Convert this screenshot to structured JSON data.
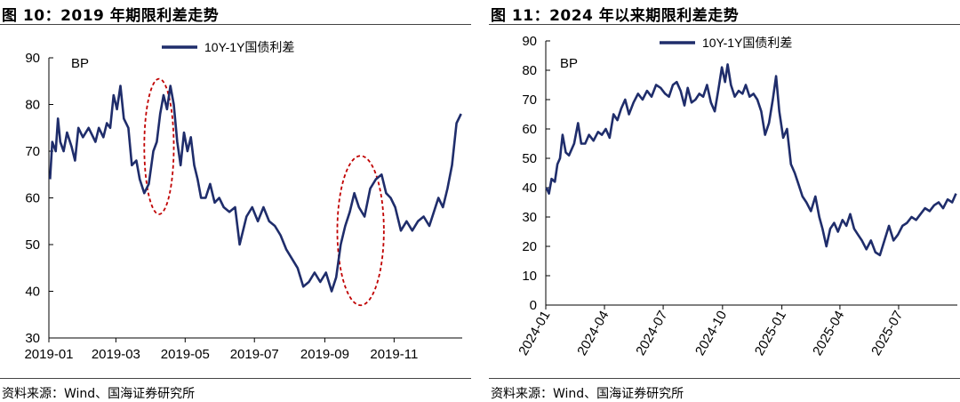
{
  "figures": [
    {
      "title": "图 10：2019 年期限利差走势",
      "source": "资料来源：Wind、国海证券研究所",
      "chart_data": {
        "type": "line",
        "title": "",
        "unit_label": "BP",
        "xlabel": "",
        "ylabel": "",
        "x_ticks": [
          "2019-01",
          "2019-03",
          "2019-05",
          "2019-07",
          "2019-09",
          "2019-11"
        ],
        "x_range": [
          "2019-01-01",
          "2019-12-31"
        ],
        "y_ticks": [
          30,
          40,
          50,
          60,
          70,
          80,
          90
        ],
        "ylim": [
          30,
          90
        ],
        "grid": false,
        "legend_position": "top-center",
        "series": [
          {
            "name": "10Y-1Y国债利差",
            "color": "#1f2d6b",
            "points": [
              [
                "2019-01-02",
                64
              ],
              [
                "2019-01-04",
                72
              ],
              [
                "2019-01-07",
                70
              ],
              [
                "2019-01-09",
                77
              ],
              [
                "2019-01-11",
                72
              ],
              [
                "2019-01-14",
                70
              ],
              [
                "2019-01-17",
                74
              ],
              [
                "2019-01-21",
                71
              ],
              [
                "2019-01-24",
                68
              ],
              [
                "2019-01-27",
                75
              ],
              [
                "2019-01-31",
                73
              ],
              [
                "2019-02-05",
                75
              ],
              [
                "2019-02-11",
                72
              ],
              [
                "2019-02-14",
                75
              ],
              [
                "2019-02-18",
                73
              ],
              [
                "2019-02-21",
                76
              ],
              [
                "2019-02-24",
                75
              ],
              [
                "2019-02-27",
                82
              ],
              [
                "2019-03-02",
                79
              ],
              [
                "2019-03-05",
                84
              ],
              [
                "2019-03-08",
                77
              ],
              [
                "2019-03-12",
                75
              ],
              [
                "2019-03-15",
                67
              ],
              [
                "2019-03-19",
                68
              ],
              [
                "2019-03-22",
                64
              ],
              [
                "2019-03-26",
                61
              ],
              [
                "2019-03-30",
                63
              ],
              [
                "2019-04-03",
                70
              ],
              [
                "2019-04-06",
                72
              ],
              [
                "2019-04-09",
                78
              ],
              [
                "2019-04-12",
                82
              ],
              [
                "2019-04-15",
                79
              ],
              [
                "2019-04-18",
                84
              ],
              [
                "2019-04-21",
                80
              ],
              [
                "2019-04-24",
                72
              ],
              [
                "2019-04-27",
                67
              ],
              [
                "2019-04-30",
                74
              ],
              [
                "2019-05-03",
                70
              ],
              [
                "2019-05-06",
                73
              ],
              [
                "2019-05-09",
                67
              ],
              [
                "2019-05-12",
                64
              ],
              [
                "2019-05-15",
                60
              ],
              [
                "2019-05-19",
                60
              ],
              [
                "2019-05-23",
                63
              ],
              [
                "2019-05-27",
                59
              ],
              [
                "2019-05-31",
                60
              ],
              [
                "2019-06-04",
                58
              ],
              [
                "2019-06-09",
                57
              ],
              [
                "2019-06-14",
                58
              ],
              [
                "2019-06-18",
                50
              ],
              [
                "2019-06-24",
                56
              ],
              [
                "2019-06-29",
                58
              ],
              [
                "2019-07-04",
                55
              ],
              [
                "2019-07-09",
                58
              ],
              [
                "2019-07-14",
                55
              ],
              [
                "2019-07-19",
                54
              ],
              [
                "2019-07-24",
                52
              ],
              [
                "2019-07-29",
                49
              ],
              [
                "2019-08-03",
                47
              ],
              [
                "2019-08-08",
                45
              ],
              [
                "2019-08-13",
                41
              ],
              [
                "2019-08-18",
                42
              ],
              [
                "2019-08-23",
                44
              ],
              [
                "2019-08-28",
                42
              ],
              [
                "2019-09-02",
                44
              ],
              [
                "2019-09-07",
                40
              ],
              [
                "2019-09-11",
                43
              ],
              [
                "2019-09-15",
                50
              ],
              [
                "2019-09-19",
                54
              ],
              [
                "2019-09-23",
                57
              ],
              [
                "2019-09-27",
                61
              ],
              [
                "2019-10-01",
                58
              ],
              [
                "2019-10-06",
                56
              ],
              [
                "2019-10-11",
                62
              ],
              [
                "2019-10-16",
                64
              ],
              [
                "2019-10-21",
                65
              ],
              [
                "2019-10-25",
                61
              ],
              [
                "2019-10-29",
                60
              ],
              [
                "2019-11-02",
                58
              ],
              [
                "2019-11-07",
                53
              ],
              [
                "2019-11-12",
                55
              ],
              [
                "2019-11-17",
                53
              ],
              [
                "2019-11-22",
                55
              ],
              [
                "2019-11-27",
                56
              ],
              [
                "2019-12-02",
                54
              ],
              [
                "2019-12-06",
                57
              ],
              [
                "2019-12-10",
                60
              ],
              [
                "2019-12-14",
                58
              ],
              [
                "2019-12-18",
                62
              ],
              [
                "2019-12-22",
                67
              ],
              [
                "2019-12-26",
                76
              ],
              [
                "2019-12-30",
                78
              ]
            ]
          }
        ],
        "annotations": [
          {
            "type": "dashed-ellipse",
            "color": "#c00000",
            "x_from": "2019-03-26",
            "x_to": "2019-04-21",
            "y_from": 56.5,
            "y_to": 85.5
          },
          {
            "type": "dashed-ellipse",
            "color": "#c00000",
            "x_from": "2019-09-12",
            "x_to": "2019-10-23",
            "y_from": 37,
            "y_to": 69
          }
        ]
      }
    },
    {
      "title": "图 11：2024 年以来期限利差走势",
      "source": "资料来源：Wind、国海证券研究所",
      "chart_data": {
        "type": "line",
        "title": "",
        "unit_label": "BP",
        "xlabel": "",
        "ylabel": "",
        "x_ticks": [
          "2024-01",
          "2024-04",
          "2024-07",
          "2024-10",
          "2025-01",
          "2025-04",
          "2025-07"
        ],
        "x_range": [
          "2024-01-01",
          "2025-09-30"
        ],
        "y_ticks": [
          0,
          10,
          20,
          30,
          40,
          50,
          60,
          70,
          80,
          90
        ],
        "ylim": [
          0,
          90
        ],
        "grid": false,
        "legend_position": "top-center",
        "series": [
          {
            "name": "10Y-1Y国债利差",
            "color": "#1f2d6b",
            "points": [
              [
                "2024-01-02",
                40
              ],
              [
                "2024-01-06",
                38
              ],
              [
                "2024-01-10",
                43
              ],
              [
                "2024-01-15",
                42
              ],
              [
                "2024-01-19",
                48
              ],
              [
                "2024-01-23",
                50
              ],
              [
                "2024-01-27",
                58
              ],
              [
                "2024-02-01",
                52
              ],
              [
                "2024-02-06",
                51
              ],
              [
                "2024-02-14",
                55
              ],
              [
                "2024-02-20",
                62
              ],
              [
                "2024-02-25",
                55
              ],
              [
                "2024-03-02",
                55
              ],
              [
                "2024-03-08",
                58
              ],
              [
                "2024-03-15",
                56
              ],
              [
                "2024-03-22",
                59
              ],
              [
                "2024-03-28",
                58
              ],
              [
                "2024-04-03",
                60
              ],
              [
                "2024-04-09",
                57
              ],
              [
                "2024-04-15",
                65
              ],
              [
                "2024-04-21",
                63
              ],
              [
                "2024-04-27",
                67
              ],
              [
                "2024-05-03",
                70
              ],
              [
                "2024-05-09",
                65
              ],
              [
                "2024-05-16",
                69
              ],
              [
                "2024-05-23",
                72
              ],
              [
                "2024-05-30",
                70
              ],
              [
                "2024-06-06",
                73
              ],
              [
                "2024-06-13",
                71
              ],
              [
                "2024-06-20",
                75
              ],
              [
                "2024-06-27",
                74
              ],
              [
                "2024-07-04",
                72
              ],
              [
                "2024-07-10",
                71
              ],
              [
                "2024-07-16",
                75
              ],
              [
                "2024-07-22",
                76
              ],
              [
                "2024-07-28",
                73
              ],
              [
                "2024-08-03",
                68
              ],
              [
                "2024-08-08",
                74
              ],
              [
                "2024-08-14",
                69
              ],
              [
                "2024-08-20",
                70
              ],
              [
                "2024-08-26",
                72
              ],
              [
                "2024-09-01",
                71
              ],
              [
                "2024-09-07",
                75
              ],
              [
                "2024-09-13",
                69
              ],
              [
                "2024-09-19",
                66
              ],
              [
                "2024-09-25",
                74
              ],
              [
                "2024-09-30",
                81
              ],
              [
                "2024-10-05",
                76
              ],
              [
                "2024-10-09",
                82
              ],
              [
                "2024-10-14",
                75
              ],
              [
                "2024-10-20",
                71
              ],
              [
                "2024-10-26",
                73
              ],
              [
                "2024-11-01",
                72
              ],
              [
                "2024-11-06",
                75
              ],
              [
                "2024-11-12",
                71
              ],
              [
                "2024-11-18",
                72
              ],
              [
                "2024-11-24",
                70
              ],
              [
                "2024-11-30",
                66
              ],
              [
                "2024-12-06",
                58
              ],
              [
                "2024-12-12",
                62
              ],
              [
                "2024-12-18",
                70
              ],
              [
                "2024-12-23",
                78
              ],
              [
                "2024-12-28",
                66
              ],
              [
                "2025-01-03",
                57
              ],
              [
                "2025-01-09",
                60
              ],
              [
                "2025-01-15",
                48
              ],
              [
                "2025-01-21",
                45
              ],
              [
                "2025-01-27",
                41
              ],
              [
                "2025-02-02",
                37
              ],
              [
                "2025-02-08",
                35
              ],
              [
                "2025-02-15",
                32
              ],
              [
                "2025-02-22",
                37
              ],
              [
                "2025-02-28",
                30
              ],
              [
                "2025-03-05",
                26
              ],
              [
                "2025-03-11",
                20
              ],
              [
                "2025-03-17",
                26
              ],
              [
                "2025-03-23",
                28
              ],
              [
                "2025-03-29",
                25
              ],
              [
                "2025-04-05",
                29
              ],
              [
                "2025-04-11",
                27
              ],
              [
                "2025-04-17",
                31
              ],
              [
                "2025-04-23",
                26
              ],
              [
                "2025-04-29",
                24
              ],
              [
                "2025-05-05",
                22
              ],
              [
                "2025-05-12",
                19
              ],
              [
                "2025-05-19",
                22
              ],
              [
                "2025-05-26",
                18
              ],
              [
                "2025-06-02",
                17
              ],
              [
                "2025-06-09",
                22
              ],
              [
                "2025-06-16",
                27
              ],
              [
                "2025-06-23",
                22
              ],
              [
                "2025-06-30",
                24
              ],
              [
                "2025-07-07",
                27
              ],
              [
                "2025-07-14",
                28
              ],
              [
                "2025-07-21",
                30
              ],
              [
                "2025-07-28",
                29
              ],
              [
                "2025-08-04",
                31
              ],
              [
                "2025-08-11",
                33
              ],
              [
                "2025-08-18",
                32
              ],
              [
                "2025-08-25",
                34
              ],
              [
                "2025-09-01",
                35
              ],
              [
                "2025-09-08",
                33
              ],
              [
                "2025-09-15",
                36
              ],
              [
                "2025-09-22",
                35
              ],
              [
                "2025-09-28",
                38
              ]
            ]
          }
        ],
        "annotations": []
      }
    }
  ]
}
